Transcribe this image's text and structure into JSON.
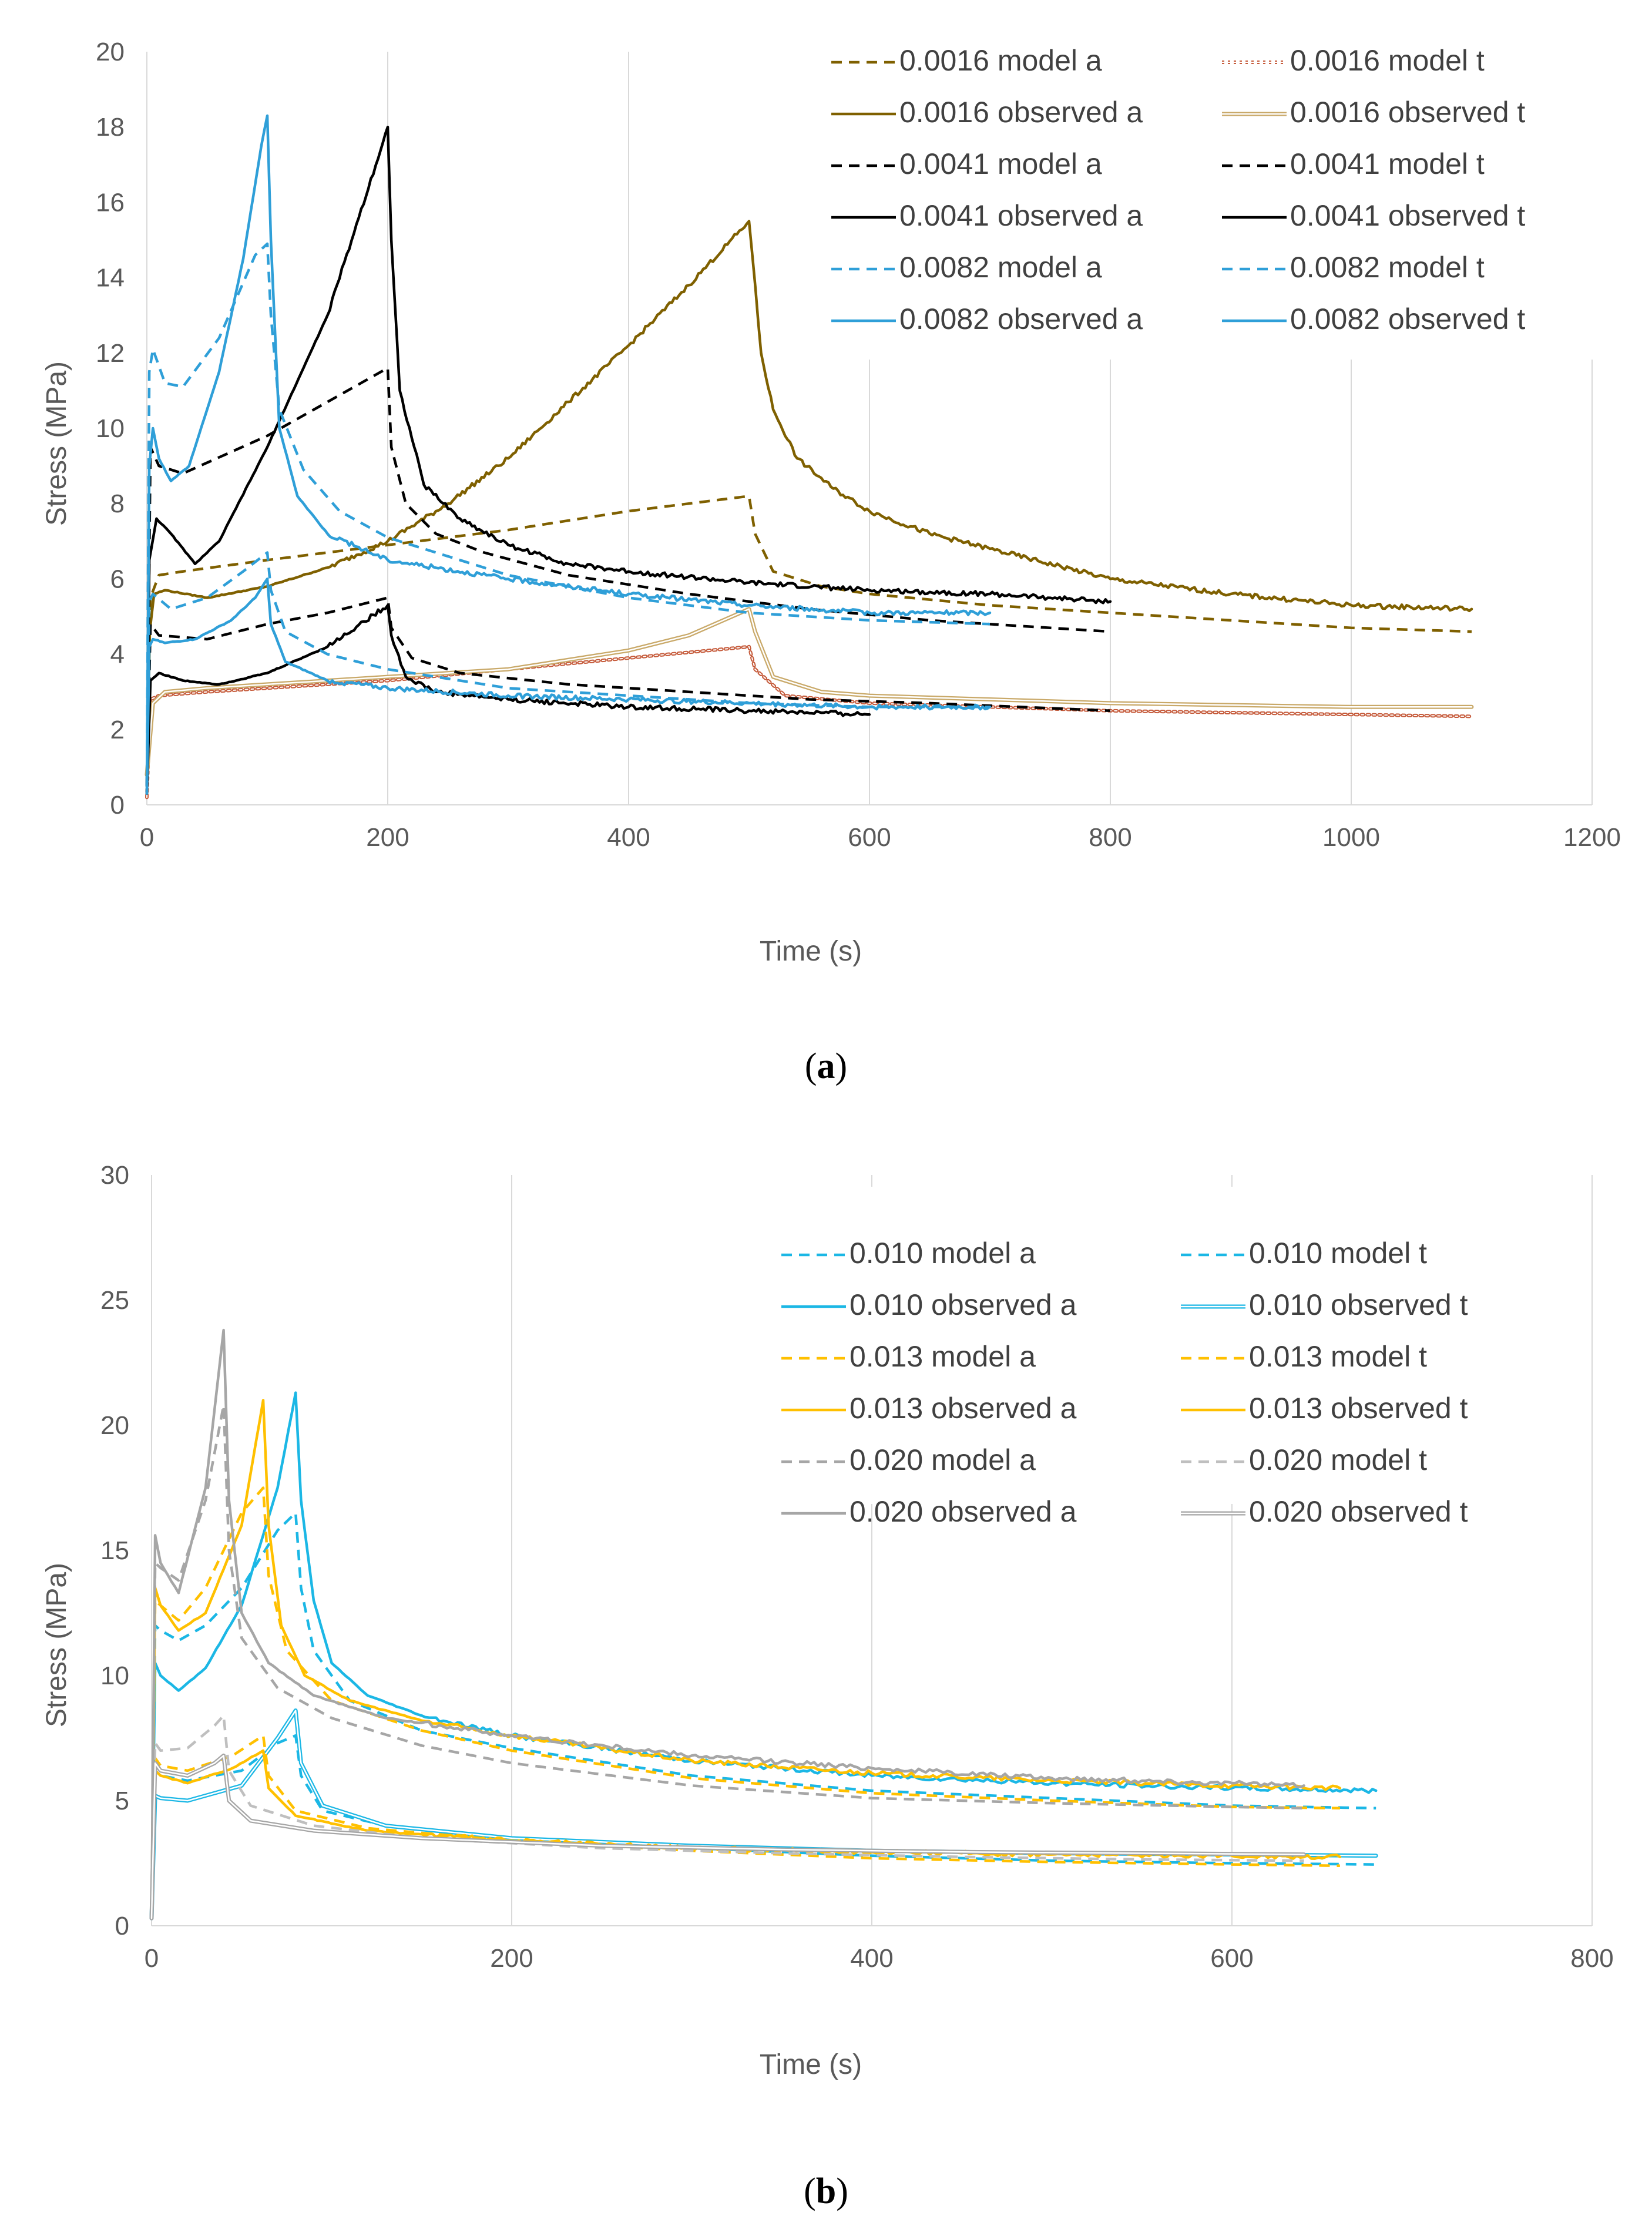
{
  "chart_data": [
    {
      "type": "line",
      "panel_label": "a",
      "title": "",
      "xlabel": "Time (s)",
      "ylabel": "Stress (MPa)",
      "xlim": [
        0,
        1200
      ],
      "ylim": [
        0,
        20
      ],
      "xticks": [
        0,
        200,
        400,
        600,
        800,
        1000,
        1200
      ],
      "yticks": [
        0,
        2,
        4,
        6,
        8,
        10,
        12,
        14,
        16,
        18,
        20
      ],
      "xtick_labels": [
        "0",
        "200",
        "400",
        "600",
        "800",
        "1000",
        "1200"
      ],
      "ytick_labels": [
        "0",
        "2",
        "4",
        "6",
        "8",
        "10",
        "12",
        "14",
        "16",
        "18",
        "20"
      ],
      "grid": "vertical",
      "legend_position": "top-right",
      "series": [
        {
          "name": "0.0016 model a",
          "color": "#7F6000",
          "style": "dashed",
          "x": [
            0,
            3,
            10,
            30,
            100,
            200,
            300,
            400,
            500,
            505,
            520,
            560,
            600,
            700,
            800,
            900,
            1000,
            1100
          ],
          "y": [
            0.5,
            5.5,
            6.1,
            6.2,
            6.5,
            6.9,
            7.3,
            7.8,
            8.2,
            7.2,
            6.2,
            5.8,
            5.6,
            5.3,
            5.1,
            4.9,
            4.7,
            4.6
          ]
        },
        {
          "name": "0.0016 model t",
          "color": "#C55A3A",
          "style": "double-dotted",
          "x": [
            0,
            3,
            10,
            50,
            100,
            200,
            300,
            400,
            500,
            505,
            530,
            600,
            700,
            800,
            900,
            1000,
            1100
          ],
          "y": [
            0.2,
            2.8,
            2.9,
            3.0,
            3.1,
            3.3,
            3.6,
            3.9,
            4.2,
            3.6,
            2.9,
            2.7,
            2.6,
            2.5,
            2.45,
            2.4,
            2.35
          ]
        },
        {
          "name": "0.0016 observed a",
          "color": "#7F6000",
          "style": "solid",
          "x": [
            0,
            2,
            6,
            15,
            50,
            100,
            150,
            200,
            250,
            300,
            350,
            400,
            450,
            500,
            503,
            510,
            520,
            540,
            570,
            600,
            650,
            700,
            800,
            900,
            1000,
            1100
          ],
          "y": [
            0.5,
            4.5,
            5.6,
            5.7,
            5.5,
            5.8,
            6.3,
            7.0,
            8.0,
            9.2,
            10.7,
            12.2,
            13.8,
            15.5,
            14.5,
            12.0,
            10.5,
            9.2,
            8.4,
            7.8,
            7.2,
            6.8,
            6.0,
            5.6,
            5.3,
            5.2
          ]
        },
        {
          "name": "0.0016 observed t",
          "color": "#C9A969",
          "style": "double",
          "x": [
            0,
            5,
            15,
            50,
            100,
            200,
            300,
            400,
            450,
            500,
            505,
            520,
            560,
            600,
            700,
            800,
            900,
            1000,
            1100
          ],
          "y": [
            0.8,
            2.7,
            3.0,
            3.1,
            3.2,
            3.4,
            3.6,
            4.1,
            4.5,
            5.2,
            4.6,
            3.4,
            3.0,
            2.9,
            2.8,
            2.7,
            2.65,
            2.6,
            2.6
          ]
        },
        {
          "name": "0.0041 model a",
          "color": "#000000",
          "style": "dashed",
          "x": [
            0,
            3,
            10,
            30,
            100,
            200,
            203,
            215,
            240,
            280,
            350,
            450,
            550,
            650,
            800
          ],
          "y": [
            0.5,
            9.5,
            9.0,
            8.8,
            9.8,
            11.6,
            9.5,
            8.0,
            7.2,
            6.7,
            6.1,
            5.6,
            5.2,
            4.9,
            4.6
          ]
        },
        {
          "name": "0.0041 model t",
          "color": "#000000",
          "style": "dashed",
          "x": [
            0,
            3,
            10,
            50,
            100,
            150,
            200,
            203,
            220,
            260,
            350,
            450,
            550,
            650,
            800
          ],
          "y": [
            0.3,
            4.8,
            4.5,
            4.4,
            4.8,
            5.1,
            5.5,
            4.7,
            3.9,
            3.5,
            3.2,
            3.0,
            2.8,
            2.7,
            2.5
          ]
        },
        {
          "name": "0.0041 observed a",
          "color": "#000000",
          "style": "solid",
          "x": [
            0,
            2,
            8,
            20,
            40,
            60,
            100,
            150,
            200,
            203,
            210,
            230,
            260,
            300,
            350,
            400,
            500,
            600,
            700,
            800
          ],
          "y": [
            0.5,
            6.5,
            7.6,
            7.2,
            6.4,
            7.0,
            9.5,
            13.0,
            18.0,
            15.0,
            11.0,
            8.5,
            7.6,
            6.9,
            6.4,
            6.2,
            5.9,
            5.7,
            5.6,
            5.4
          ]
        },
        {
          "name": "0.0041 observed t",
          "color": "#000000",
          "style": "solid",
          "x": [
            0,
            3,
            10,
            30,
            60,
            100,
            150,
            200,
            203,
            215,
            240,
            300,
            400,
            500,
            600
          ],
          "y": [
            0.3,
            3.3,
            3.5,
            3.3,
            3.2,
            3.5,
            4.2,
            5.3,
            4.5,
            3.4,
            3.0,
            2.8,
            2.6,
            2.5,
            2.4
          ]
        },
        {
          "name": "0.0082 model a",
          "color": "#2F9FD8",
          "style": "dashed",
          "x": [
            0,
            2,
            5,
            15,
            30,
            60,
            90,
            100,
            103,
            110,
            130,
            160,
            200,
            300,
            400,
            500,
            600,
            700
          ],
          "y": [
            0.5,
            11.5,
            12.1,
            11.2,
            11.1,
            12.4,
            14.6,
            14.9,
            13.0,
            10.5,
            8.9,
            7.8,
            7.1,
            6.1,
            5.5,
            5.1,
            4.9,
            4.8
          ]
        },
        {
          "name": "0.0082 model t",
          "color": "#2F9FD8",
          "style": "dashed",
          "x": [
            0,
            2,
            5,
            20,
            50,
            80,
            100,
            103,
            115,
            150,
            200,
            300,
            400,
            500,
            600,
            700
          ],
          "y": [
            0.3,
            5.4,
            5.6,
            5.2,
            5.5,
            6.2,
            6.7,
            5.7,
            4.6,
            4.0,
            3.6,
            3.1,
            2.9,
            2.7,
            2.6,
            2.6
          ]
        },
        {
          "name": "0.0082 observed a",
          "color": "#2F9FD8",
          "style": "solid",
          "x": [
            0,
            2,
            5,
            10,
            20,
            35,
            60,
            80,
            95,
            100,
            103,
            110,
            125,
            150,
            200,
            300,
            400,
            500,
            600,
            700
          ],
          "y": [
            0.5,
            9.0,
            10.0,
            9.2,
            8.6,
            9.0,
            11.5,
            14.5,
            17.5,
            18.3,
            15.0,
            10.0,
            8.2,
            7.2,
            6.5,
            6.0,
            5.6,
            5.3,
            5.1,
            5.1
          ]
        },
        {
          "name": "0.0082 observed t",
          "color": "#2F9FD8",
          "style": "solid",
          "x": [
            0,
            2,
            5,
            15,
            40,
            70,
            90,
            100,
            103,
            115,
            150,
            200,
            300,
            400,
            500,
            600,
            700
          ],
          "y": [
            0.3,
            4.2,
            4.4,
            4.3,
            4.4,
            4.9,
            5.5,
            6.0,
            4.8,
            3.8,
            3.3,
            3.1,
            2.9,
            2.8,
            2.7,
            2.6,
            2.6
          ]
        }
      ]
    },
    {
      "type": "line",
      "panel_label": "b",
      "title": "",
      "xlabel": "Time (s)",
      "ylabel": "Stress (MPa)",
      "xlim": [
        0,
        800
      ],
      "ylim": [
        0,
        30
      ],
      "xticks": [
        0,
        200,
        400,
        600,
        800
      ],
      "yticks": [
        0,
        5,
        10,
        15,
        20,
        25,
        30
      ],
      "xtick_labels": [
        "0",
        "200",
        "400",
        "600",
        "800"
      ],
      "ytick_labels": [
        "0",
        "5",
        "10",
        "15",
        "20",
        "25",
        "30"
      ],
      "grid": "vertical",
      "legend_position": "top-right",
      "series": [
        {
          "name": "0.010 model a",
          "color": "#1BB7E5",
          "style": "dashed",
          "x": [
            0,
            2,
            5,
            15,
            30,
            50,
            70,
            80,
            83,
            90,
            110,
            150,
            200,
            300,
            400,
            500,
            600,
            680
          ],
          "y": [
            0.5,
            12.0,
            11.8,
            11.4,
            12.0,
            13.5,
            15.8,
            16.5,
            13.5,
            11.0,
            9.0,
            7.8,
            7.1,
            6.0,
            5.4,
            5.1,
            4.8,
            4.7
          ]
        },
        {
          "name": "0.010 model t",
          "color": "#1BB7E5",
          "style": "dashed",
          "x": [
            0,
            2,
            5,
            20,
            50,
            70,
            80,
            83,
            95,
            130,
            200,
            300,
            400,
            500,
            600,
            680
          ],
          "y": [
            0.3,
            6.2,
            6.0,
            5.8,
            6.2,
            7.3,
            7.6,
            6.0,
            4.6,
            4.0,
            3.5,
            3.1,
            2.8,
            2.6,
            2.5,
            2.45
          ]
        },
        {
          "name": "0.010 observed a",
          "color": "#1BB7E5",
          "style": "solid",
          "x": [
            0,
            2,
            5,
            15,
            30,
            50,
            70,
            80,
            83,
            90,
            100,
            120,
            150,
            200,
            300,
            400,
            500,
            600,
            680
          ],
          "y": [
            0.5,
            10.5,
            10.0,
            9.4,
            10.3,
            12.8,
            17.5,
            21.3,
            17.0,
            13.0,
            10.5,
            9.2,
            8.4,
            7.6,
            6.6,
            6.0,
            5.7,
            5.5,
            5.4
          ]
        },
        {
          "name": "0.010 observed t",
          "color": "#1BB7E5",
          "style": "double",
          "x": [
            0,
            2,
            5,
            20,
            50,
            70,
            80,
            83,
            95,
            130,
            200,
            300,
            400,
            500,
            600,
            680
          ],
          "y": [
            0.3,
            5.2,
            5.1,
            5.0,
            5.6,
            7.5,
            8.6,
            6.5,
            4.8,
            4.0,
            3.5,
            3.2,
            3.0,
            2.9,
            2.85,
            2.8
          ]
        },
        {
          "name": "0.013 model a",
          "color": "#FFC000",
          "style": "dashed",
          "x": [
            0,
            2,
            5,
            15,
            30,
            50,
            62,
            65,
            75,
            100,
            150,
            200,
            300,
            400,
            500,
            600,
            660
          ],
          "y": [
            0.5,
            13.0,
            12.8,
            12.2,
            13.5,
            16.5,
            17.5,
            14.0,
            11.0,
            9.0,
            7.8,
            7.0,
            5.9,
            5.3,
            5.0,
            4.75,
            4.7
          ]
        },
        {
          "name": "0.013 model t",
          "color": "#FFC000",
          "style": "dashed",
          "x": [
            0,
            2,
            5,
            20,
            45,
            62,
            65,
            80,
            120,
            200,
            300,
            400,
            500,
            600,
            660
          ],
          "y": [
            0.3,
            6.7,
            6.4,
            6.2,
            6.8,
            7.6,
            6.0,
            4.6,
            3.9,
            3.4,
            3.0,
            2.7,
            2.55,
            2.45,
            2.4
          ]
        },
        {
          "name": "0.013 observed a",
          "color": "#FFC000",
          "style": "solid",
          "x": [
            0,
            2,
            5,
            15,
            30,
            50,
            62,
            65,
            72,
            85,
            110,
            150,
            200,
            300,
            400,
            500,
            600,
            660
          ],
          "y": [
            0.5,
            13.5,
            12.8,
            11.8,
            12.5,
            16.0,
            21.0,
            16.0,
            12.0,
            10.0,
            9.0,
            8.2,
            7.6,
            6.6,
            6.1,
            5.8,
            5.6,
            5.5
          ]
        },
        {
          "name": "0.013 observed t",
          "color": "#FFC000",
          "style": "solid",
          "x": [
            0,
            2,
            5,
            20,
            45,
            62,
            65,
            80,
            120,
            200,
            300,
            400,
            500,
            600,
            660
          ],
          "y": [
            0.3,
            6.2,
            6.0,
            5.7,
            6.3,
            7.0,
            5.5,
            4.4,
            3.8,
            3.4,
            3.1,
            2.95,
            2.85,
            2.8,
            2.75
          ]
        },
        {
          "name": "0.020 model a",
          "color": "#A6A6A6",
          "style": "dashed",
          "x": [
            0,
            2,
            5,
            15,
            30,
            40,
            43,
            50,
            70,
            100,
            150,
            200,
            300,
            400,
            500,
            600,
            640
          ],
          "y": [
            0.5,
            14.5,
            14.3,
            13.8,
            17.0,
            20.8,
            15.0,
            11.5,
            9.5,
            8.3,
            7.2,
            6.5,
            5.6,
            5.1,
            4.9,
            4.75,
            4.7
          ]
        },
        {
          "name": "0.020 model t",
          "color": "#BFBFBF",
          "style": "dashed",
          "x": [
            0,
            2,
            5,
            20,
            35,
            40,
            43,
            55,
            90,
            150,
            250,
            350,
            450,
            550,
            640
          ],
          "y": [
            0.3,
            7.3,
            7.0,
            7.1,
            8.0,
            8.4,
            6.2,
            4.8,
            4.0,
            3.5,
            3.1,
            2.9,
            2.75,
            2.65,
            2.6
          ]
        },
        {
          "name": "0.020 observed a",
          "color": "#A6A6A6",
          "style": "solid",
          "x": [
            0,
            2,
            5,
            15,
            30,
            40,
            43,
            50,
            65,
            90,
            130,
            200,
            300,
            400,
            500,
            600,
            640
          ],
          "y": [
            0.5,
            15.6,
            14.5,
            13.3,
            17.5,
            23.8,
            17.0,
            12.5,
            10.5,
            9.2,
            8.3,
            7.6,
            6.8,
            6.3,
            5.9,
            5.7,
            5.6
          ]
        },
        {
          "name": "0.020 observed t",
          "color": "#A6A6A6",
          "style": "double",
          "x": [
            0,
            2,
            5,
            20,
            35,
            40,
            43,
            55,
            90,
            150,
            250,
            350,
            450,
            550,
            640
          ],
          "y": [
            0.3,
            6.5,
            6.2,
            6.0,
            6.5,
            6.8,
            5.0,
            4.2,
            3.8,
            3.5,
            3.2,
            3.05,
            2.95,
            2.9,
            2.85
          ]
        }
      ]
    }
  ]
}
